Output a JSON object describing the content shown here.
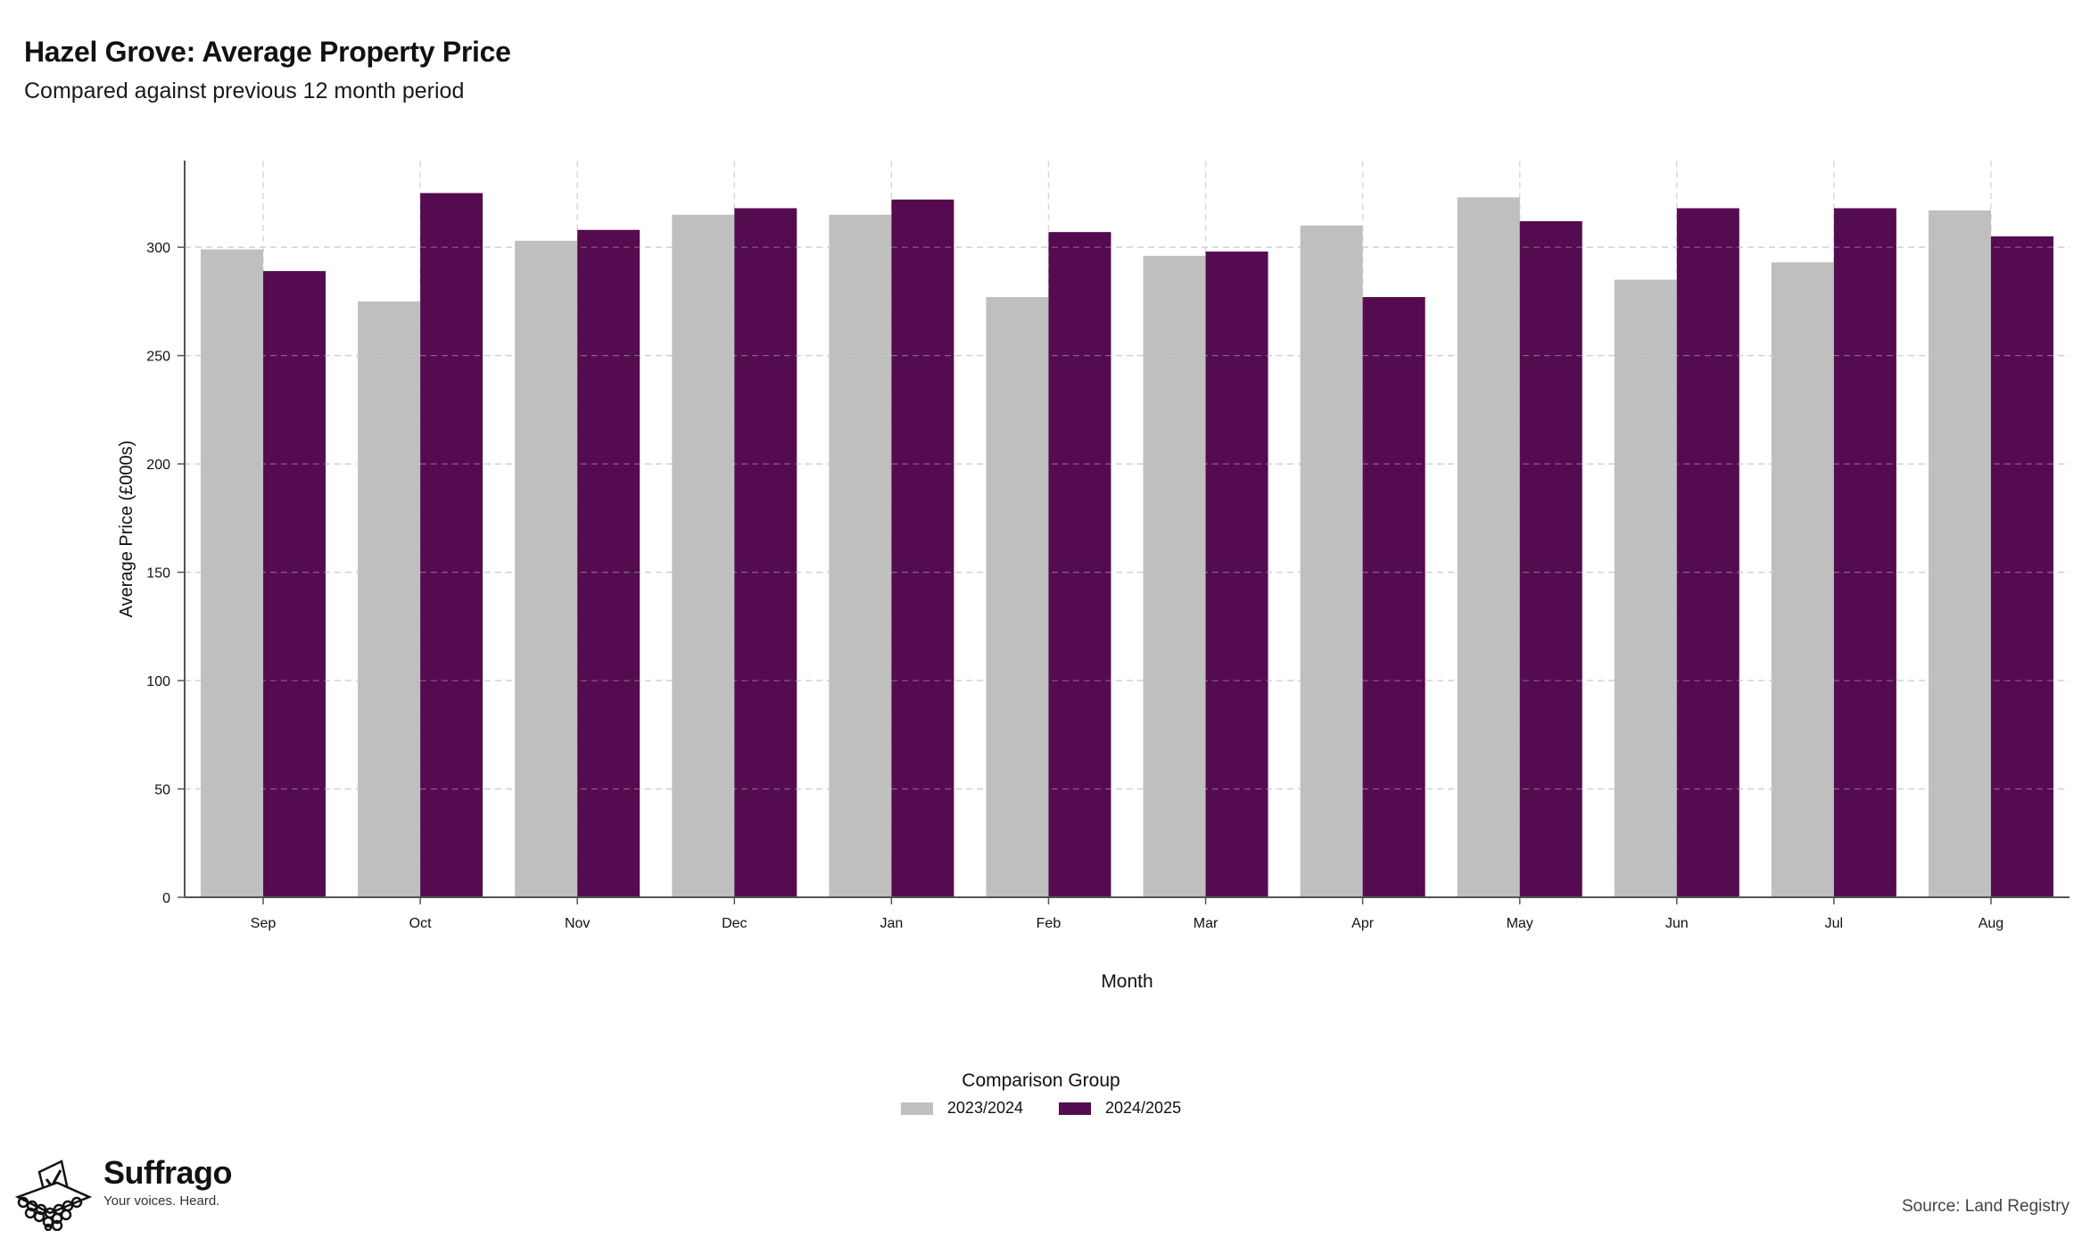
{
  "header": {
    "title": "Hazel Grove: Average Property Price",
    "subtitle": "Compared against previous 12 month period"
  },
  "chart_data": {
    "type": "bar",
    "categories": [
      "Sep",
      "Oct",
      "Nov",
      "Dec",
      "Jan",
      "Feb",
      "Mar",
      "Apr",
      "May",
      "Jun",
      "Jul",
      "Aug"
    ],
    "series": [
      {
        "name": "2023/2024",
        "color": "#bfbfbf",
        "values": [
          299,
          275,
          303,
          315,
          315,
          277,
          296,
          310,
          323,
          285,
          293,
          317
        ]
      },
      {
        "name": "2024/2025",
        "color": "#540b50",
        "values": [
          289,
          325,
          308,
          318,
          322,
          307,
          298,
          277,
          312,
          318,
          318,
          305
        ]
      }
    ],
    "xlabel": "Month",
    "ylabel": "Average Price (£000s)",
    "ylim": [
      0,
      340
    ],
    "yticks": [
      0,
      50,
      100,
      150,
      200,
      250,
      300
    ],
    "grid": true,
    "legend_title": "Comparison Group",
    "legend_position": "bottom"
  },
  "footer": {
    "brand_name": "Suffrago",
    "brand_tagline": "Your voices. Heard.",
    "source": "Source: Land Registry"
  }
}
